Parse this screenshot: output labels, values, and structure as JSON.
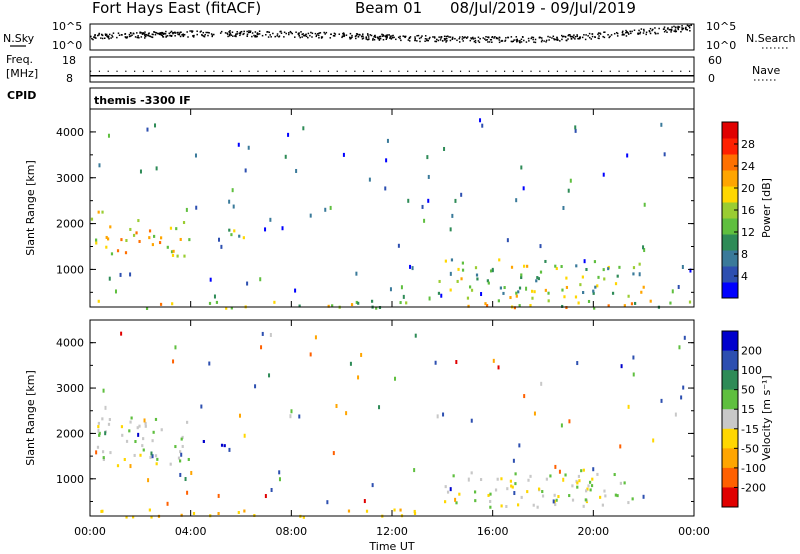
{
  "chart_data": [
    {
      "type": "line",
      "panel": "header",
      "title": "Fort Hays East (fitACF)",
      "beam": "Beam 01",
      "date_range": "08/Jul/2019 - 09/Jul/2019",
      "left_label": "N.Sky",
      "right_label": "N.Search",
      "left_ticks": [
        "10^5",
        "10^0"
      ],
      "right_ticks": [
        "10^5",
        "10^0"
      ],
      "freq_label_top": "Freq.",
      "freq_label_unit": "[MHz]",
      "freq_ticks": [
        "18",
        "8"
      ],
      "nave_label": "Nave",
      "nave_ticks": [
        "60",
        "0"
      ],
      "cpid_label": "CPID",
      "cpid_value": "themis -3300 IF",
      "freq_mhz_level": 10.5,
      "nave_level": 20
    },
    {
      "type": "heatmap",
      "panel": "power",
      "ylabel": "Slant Range [km]",
      "yticks": [
        "4000",
        "3000",
        "2000",
        "1000"
      ],
      "ylim": [
        180,
        4500
      ],
      "colorbar_label": "Power [dB]",
      "colorbar_ticks": [
        "28",
        "24",
        "20",
        "16",
        "12",
        "8",
        "4"
      ],
      "colorbar_range": [
        0,
        30
      ],
      "colors": [
        "#0000ff",
        "#2d4fb0",
        "#3a7a9a",
        "#2e8b57",
        "#5fbf3f",
        "#9acd32",
        "#ffd700",
        "#ffa500",
        "#ff7000",
        "#ff2000",
        "#e00000"
      ],
      "features": [
        {
          "t": [
            0.0,
            0.5
          ],
          "range": [
            1500,
            2400
          ],
          "power": 14
        },
        {
          "t": [
            0.5,
            4.0
          ],
          "range": [
            1300,
            2100
          ],
          "power": 18
        },
        {
          "t": [
            4.0,
            6.2
          ],
          "range": [
            1700,
            1900
          ],
          "power": 12
        },
        {
          "t": [
            0.3,
            24.0
          ],
          "range": [
            180,
            350
          ],
          "power": 16
        },
        {
          "t": [
            13.8,
            22.0
          ],
          "range": [
            400,
            1250
          ],
          "power": 14
        }
      ]
    },
    {
      "type": "heatmap",
      "panel": "velocity",
      "ylabel": "Slant Range [km]",
      "yticks": [
        "4000",
        "3000",
        "2000",
        "1000"
      ],
      "ylim": [
        180,
        4500
      ],
      "xlabel": "Time UT",
      "xticks": [
        "00:00",
        "04:00",
        "08:00",
        "12:00",
        "16:00",
        "20:00",
        "00:00"
      ],
      "xlim": [
        0,
        24
      ],
      "colorbar_label": "Velocity [m s⁻¹]",
      "colorbar_ticks": [
        "200",
        "100",
        "50",
        "15",
        "-15",
        "-50",
        "-100",
        "-200"
      ],
      "colorbar_range": [
        -250,
        250
      ],
      "colors": [
        "#e00000",
        "#ff6000",
        "#ffa500",
        "#ffd700",
        "#c8c8c8",
        "#5fbf3f",
        "#2e8b57",
        "#2d4fb0",
        "#0000cc"
      ],
      "features": [
        {
          "t": [
            0.0,
            4.0
          ],
          "range": [
            1300,
            2400
          ],
          "velocity": 0
        },
        {
          "t": [
            4.2,
            6.2
          ],
          "range": [
            1750,
            1900
          ],
          "velocity": 220
        },
        {
          "t": [
            0.3,
            13.0
          ],
          "range": [
            180,
            350
          ],
          "velocity": -40
        },
        {
          "t": [
            13.8,
            22.0
          ],
          "range": [
            400,
            1250
          ],
          "velocity": 0
        }
      ]
    }
  ]
}
